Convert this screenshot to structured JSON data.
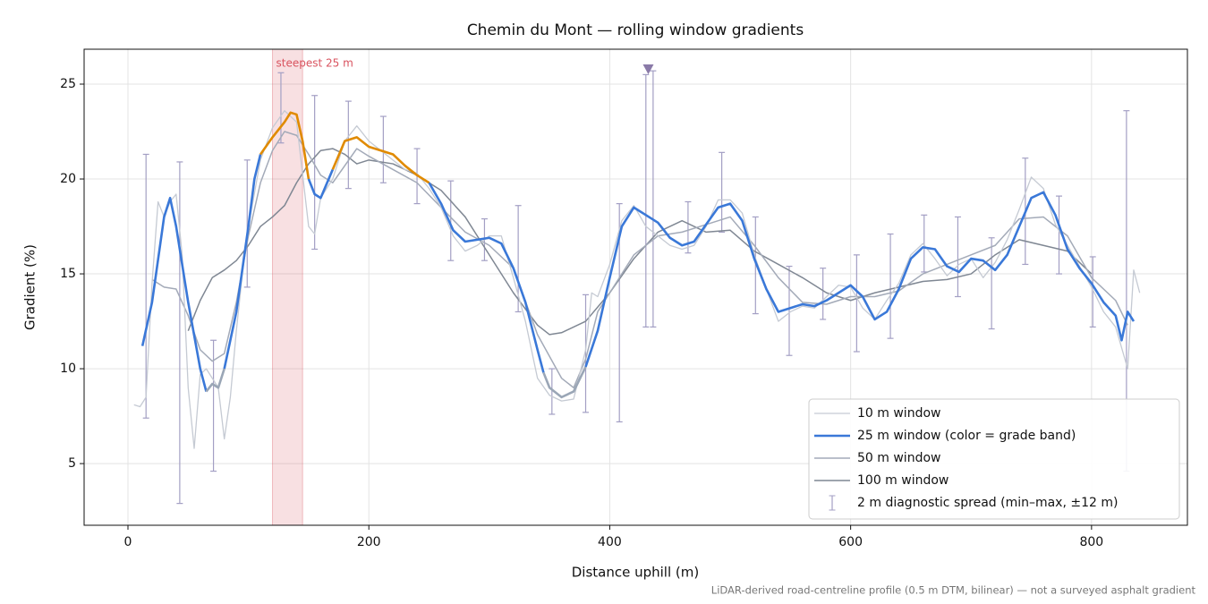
{
  "chart_data": {
    "type": "line",
    "title": "Chemin du Mont — rolling window gradients",
    "x_label": "Distance uphill (m)",
    "y_label": "Gradient (%)",
    "footnote": "LiDAR-derived road-centreline profile (0.5 m DTM, bilinear) — not a surveyed asphalt gradient",
    "xlim": [
      -36.4,
      879.6
    ],
    "ylim": [
      1.75,
      26.84
    ],
    "xticks": [
      0,
      200,
      400,
      600,
      800
    ],
    "yticks": [
      5,
      10,
      15,
      20,
      25
    ],
    "grid": true,
    "legend": "lower right",
    "highlight": {
      "label": "steepest 25 m",
      "x": [
        120,
        145
      ],
      "color": "#d9535f"
    },
    "marker": {
      "x": 432,
      "y": 25.8,
      "color": "#8a7aa8"
    },
    "series": [
      {
        "name": "10 m window",
        "color": "#c5cad3",
        "width": 1.3,
        "x": [
          5,
          10,
          15,
          20,
          25,
          30,
          35,
          40,
          45,
          50,
          55,
          60,
          65,
          70,
          75,
          80,
          85,
          90,
          95,
          100,
          110,
          120,
          130,
          140,
          150,
          155,
          160,
          170,
          180,
          190,
          200,
          210,
          220,
          230,
          240,
          250,
          260,
          270,
          280,
          290,
          300,
          310,
          320,
          330,
          340,
          350,
          360,
          370,
          380,
          385,
          390,
          400,
          410,
          420,
          430,
          440,
          450,
          460,
          470,
          480,
          490,
          500,
          510,
          520,
          530,
          540,
          550,
          560,
          570,
          580,
          590,
          600,
          610,
          620,
          630,
          640,
          650,
          660,
          670,
          680,
          690,
          700,
          710,
          720,
          730,
          740,
          750,
          760,
          770,
          780,
          790,
          800,
          810,
          820,
          830,
          835,
          840
        ],
        "values": [
          8.1,
          8.0,
          8.5,
          14.5,
          18.8,
          18.0,
          18.8,
          19.2,
          16,
          9,
          5.8,
          9.7,
          10.0,
          9.5,
          9.0,
          6.3,
          8.5,
          12,
          15,
          17.5,
          21,
          22.7,
          23.6,
          23.0,
          17.5,
          17.1,
          19,
          20,
          22,
          22.8,
          22,
          21.5,
          21,
          20.5,
          20.3,
          19.5,
          18.5,
          17,
          16.2,
          16.5,
          17,
          17,
          14.8,
          12.5,
          9.5,
          8.6,
          8.3,
          8.4,
          11,
          14,
          13.8,
          15.5,
          17.8,
          18.6,
          17.5,
          17.0,
          16.5,
          16.3,
          16.5,
          17.5,
          18.9,
          18.9,
          18.2,
          16,
          14.2,
          12.5,
          13.0,
          13.3,
          13.2,
          13.8,
          14.4,
          14.3,
          13.2,
          12.6,
          13.6,
          14.5,
          16.0,
          16.6,
          15.8,
          14.9,
          15.5,
          15.8,
          14.8,
          15.6,
          16.8,
          18.4,
          20.1,
          19.5,
          17.6,
          16.5,
          15.4,
          14.3,
          13.0,
          12.2,
          10.0,
          15.2,
          14.0
        ]
      },
      {
        "name": "25 m window (color = grade band)",
        "color": "#3a78d8",
        "width": 2.6,
        "bands": [
          {
            "below": 10,
            "color": "#9aa6b6"
          },
          {
            "above": 20,
            "color": "#e08a00"
          }
        ],
        "x": [
          12,
          20,
          30,
          35,
          40,
          50,
          60,
          65,
          70,
          75,
          80,
          90,
          100,
          105,
          110,
          120,
          130,
          135,
          140,
          145,
          150,
          155,
          160,
          170,
          180,
          190,
          200,
          210,
          220,
          230,
          240,
          250,
          260,
          270,
          280,
          290,
          300,
          310,
          320,
          330,
          340,
          345,
          350,
          360,
          370,
          380,
          390,
          400,
          410,
          420,
          430,
          440,
          450,
          460,
          470,
          480,
          490,
          500,
          510,
          520,
          530,
          540,
          550,
          560,
          570,
          580,
          590,
          600,
          610,
          620,
          630,
          640,
          650,
          660,
          670,
          680,
          690,
          700,
          710,
          720,
          730,
          740,
          750,
          760,
          770,
          780,
          790,
          800,
          810,
          820,
          825,
          830,
          835
        ],
        "values": [
          11.2,
          13.5,
          18.0,
          19.0,
          17.5,
          13.5,
          10.0,
          8.8,
          9.2,
          9.0,
          10,
          13,
          17.5,
          20,
          21.3,
          22.2,
          23.0,
          23.5,
          23.4,
          22,
          20,
          19.2,
          19.0,
          20.5,
          22,
          22.2,
          21.7,
          21.5,
          21.3,
          20.7,
          20.2,
          19.8,
          18.7,
          17.3,
          16.7,
          16.8,
          16.9,
          16.6,
          15.3,
          13.5,
          11,
          9.8,
          9.0,
          8.5,
          8.8,
          10.1,
          12,
          14.8,
          17.5,
          18.5,
          18.1,
          17.7,
          16.9,
          16.5,
          16.7,
          17.6,
          18.5,
          18.7,
          17.8,
          15.8,
          14.2,
          13.0,
          13.2,
          13.4,
          13.3,
          13.6,
          14.0,
          14.4,
          13.8,
          12.6,
          13.0,
          14.2,
          15.8,
          16.4,
          16.3,
          15.4,
          15.1,
          15.8,
          15.7,
          15.2,
          16.0,
          17.5,
          19.0,
          19.3,
          18.1,
          16.3,
          15.3,
          14.5,
          13.5,
          12.8,
          11.5,
          13.0,
          12.5
        ]
      },
      {
        "name": "50 m window",
        "color": "#a3aab8",
        "width": 1.5,
        "x": [
          20,
          30,
          40,
          50,
          60,
          70,
          80,
          90,
          100,
          110,
          120,
          130,
          140,
          150,
          160,
          170,
          180,
          190,
          200,
          220,
          240,
          260,
          280,
          300,
          320,
          340,
          360,
          370,
          380,
          390,
          400,
          420,
          440,
          460,
          480,
          500,
          520,
          540,
          560,
          580,
          600,
          620,
          640,
          660,
          680,
          700,
          720,
          740,
          760,
          780,
          800,
          820,
          830
        ],
        "values": [
          14.7,
          14.3,
          14.2,
          12.8,
          11,
          10.4,
          10.8,
          13.5,
          17,
          19.8,
          21.5,
          22.5,
          22.3,
          21.3,
          20.2,
          19.8,
          20.7,
          21.6,
          21.2,
          20.5,
          19.8,
          18.5,
          17.2,
          16.5,
          15.3,
          11.8,
          9.5,
          9.0,
          10.5,
          13,
          14,
          16.0,
          17.0,
          17.2,
          17.6,
          18.0,
          16.5,
          14.8,
          13.5,
          13.4,
          13.8,
          13.8,
          14.1,
          15.0,
          15.5,
          16.0,
          16.5,
          17.9,
          18.0,
          17.0,
          14.8,
          13.6,
          12.3
        ]
      },
      {
        "name": "100 m window",
        "color": "#7f8793",
        "width": 1.5,
        "x": [
          50,
          60,
          70,
          80,
          90,
          100,
          110,
          120,
          130,
          140,
          150,
          160,
          170,
          180,
          190,
          200,
          220,
          240,
          260,
          280,
          300,
          320,
          340,
          350,
          360,
          380,
          400,
          420,
          440,
          460,
          480,
          500,
          520,
          540,
          560,
          580,
          600,
          620,
          640,
          660,
          680,
          700,
          720,
          740,
          760,
          780,
          800
        ],
        "values": [
          12.0,
          13.6,
          14.8,
          15.2,
          15.7,
          16.5,
          17.5,
          18.0,
          18.6,
          19.8,
          20.8,
          21.5,
          21.6,
          21.3,
          20.8,
          21.0,
          20.8,
          20.2,
          19.4,
          18.0,
          16.0,
          14.0,
          12.3,
          11.8,
          11.9,
          12.5,
          14.0,
          15.8,
          17.2,
          17.8,
          17.2,
          17.3,
          16.2,
          15.5,
          14.8,
          14.0,
          13.6,
          14.0,
          14.3,
          14.6,
          14.7,
          15.0,
          16.0,
          16.8,
          16.5,
          16.2,
          15.0
        ]
      }
    ],
    "errorbars": {
      "name": "2 m diagnostic spread (min–max, ±12 m)",
      "color": "#a39fc4",
      "x": [
        15,
        43,
        71,
        99,
        127,
        155,
        183,
        212,
        240,
        268,
        296,
        324,
        352,
        380,
        408,
        430,
        436,
        465,
        493,
        521,
        549,
        577,
        605,
        633,
        661,
        689,
        717,
        745,
        773,
        801,
        829
      ],
      "low": [
        7.4,
        2.9,
        4.6,
        14.3,
        21.9,
        16.3,
        19.5,
        19.8,
        18.7,
        15.7,
        15.7,
        13.0,
        7.6,
        7.7,
        7.2,
        12.2,
        12.2,
        16.1,
        17.2,
        12.9,
        10.7,
        12.6,
        10.9,
        11.6,
        15.1,
        13.8,
        12.1,
        15.5,
        15.0,
        12.2,
        4.6
      ],
      "high": [
        21.3,
        20.9,
        11.5,
        21.0,
        25.6,
        24.4,
        24.1,
        23.3,
        21.6,
        19.9,
        17.9,
        18.6,
        10.0,
        13.9,
        18.7,
        25.5,
        25.7,
        18.8,
        21.4,
        18.0,
        15.4,
        15.3,
        16.0,
        17.1,
        18.1,
        18.0,
        16.9,
        21.1,
        19.1,
        15.9,
        23.6
      ]
    }
  }
}
